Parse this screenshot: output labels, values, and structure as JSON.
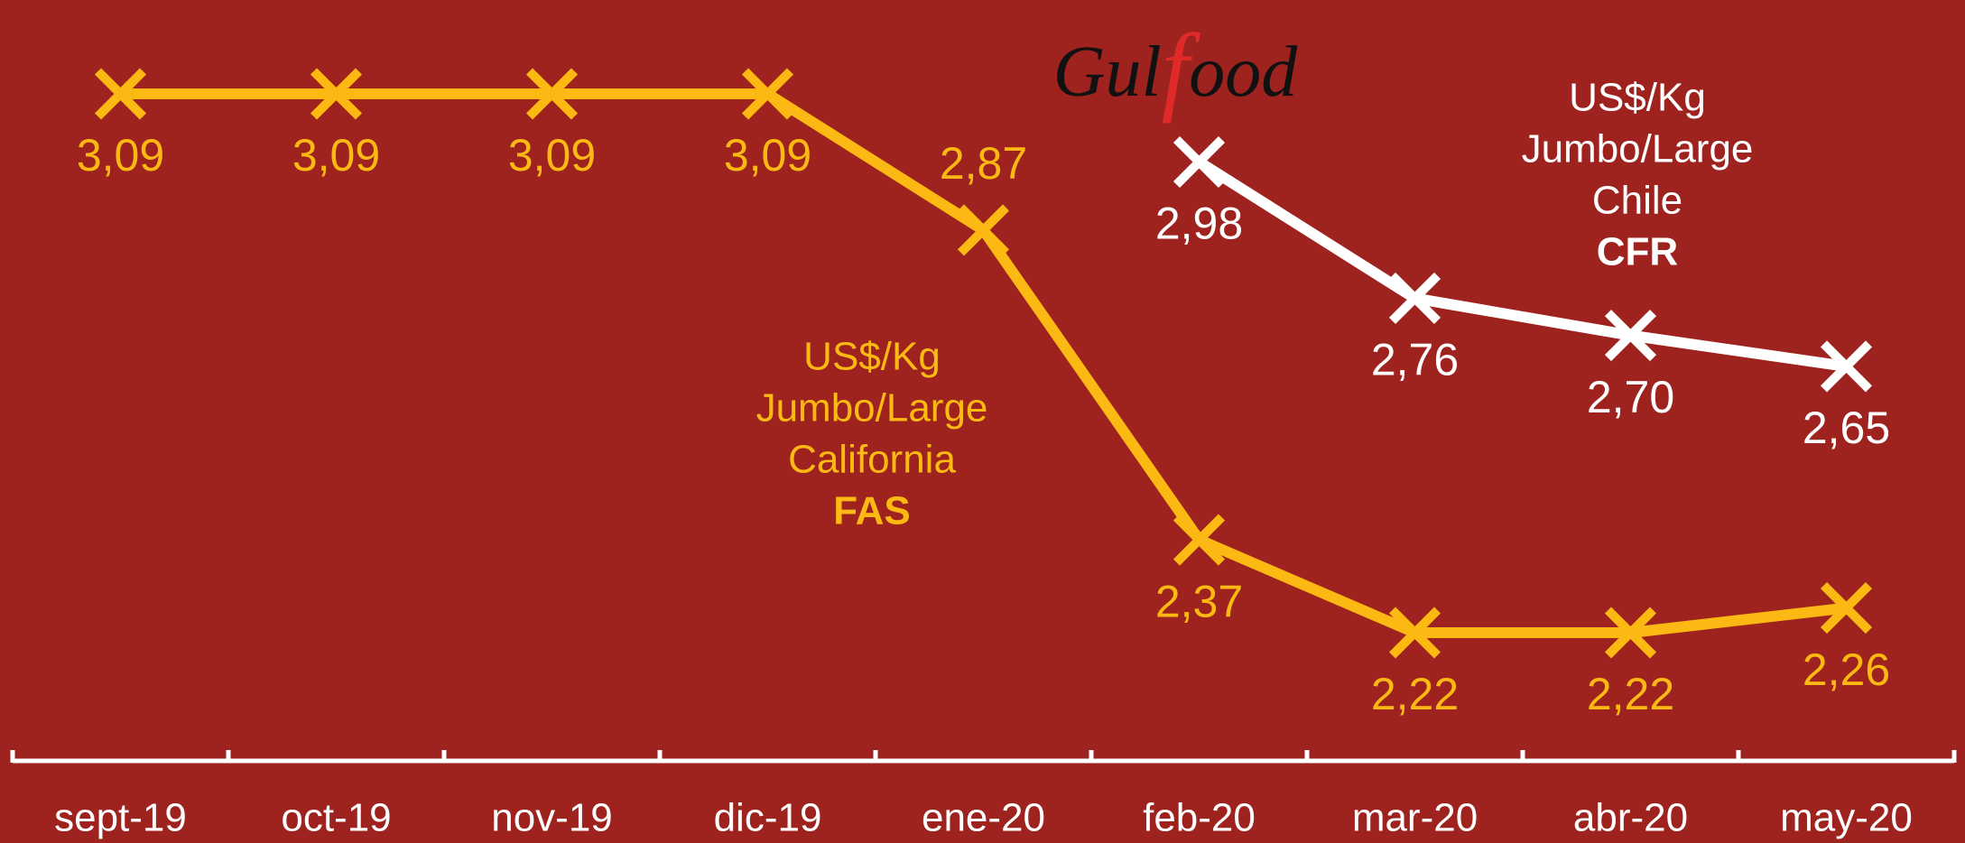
{
  "chart_data": {
    "type": "line",
    "logo": [
      "Gul",
      "f",
      "ood"
    ],
    "categories": [
      "sept-19",
      "oct-19",
      "nov-19",
      "dic-19",
      "ene-20",
      "feb-20",
      "mar-20",
      "abr-20",
      "may-20"
    ],
    "series": [
      {
        "name": [
          "US$/Kg",
          "Jumbo/Large",
          "California",
          "FAS"
        ],
        "color": "#fdb913",
        "values": [
          3.09,
          3.09,
          3.09,
          3.09,
          2.87,
          2.37,
          2.22,
          2.22,
          2.26
        ],
        "value_labels": [
          "3,09",
          "3,09",
          "3,09",
          "3,09",
          "2,87",
          "2,37",
          "2,22",
          "2,22",
          "2,26"
        ]
      },
      {
        "name": [
          "US$/Kg",
          "Jumbo/Large",
          "Chile",
          "CFR"
        ],
        "color": "#ffffff",
        "values": [
          null,
          null,
          null,
          null,
          null,
          2.98,
          2.76,
          2.7,
          2.65
        ],
        "value_labels": [
          null,
          null,
          null,
          null,
          null,
          "2,98",
          "2,76",
          "2,70",
          "2,65"
        ]
      }
    ]
  }
}
